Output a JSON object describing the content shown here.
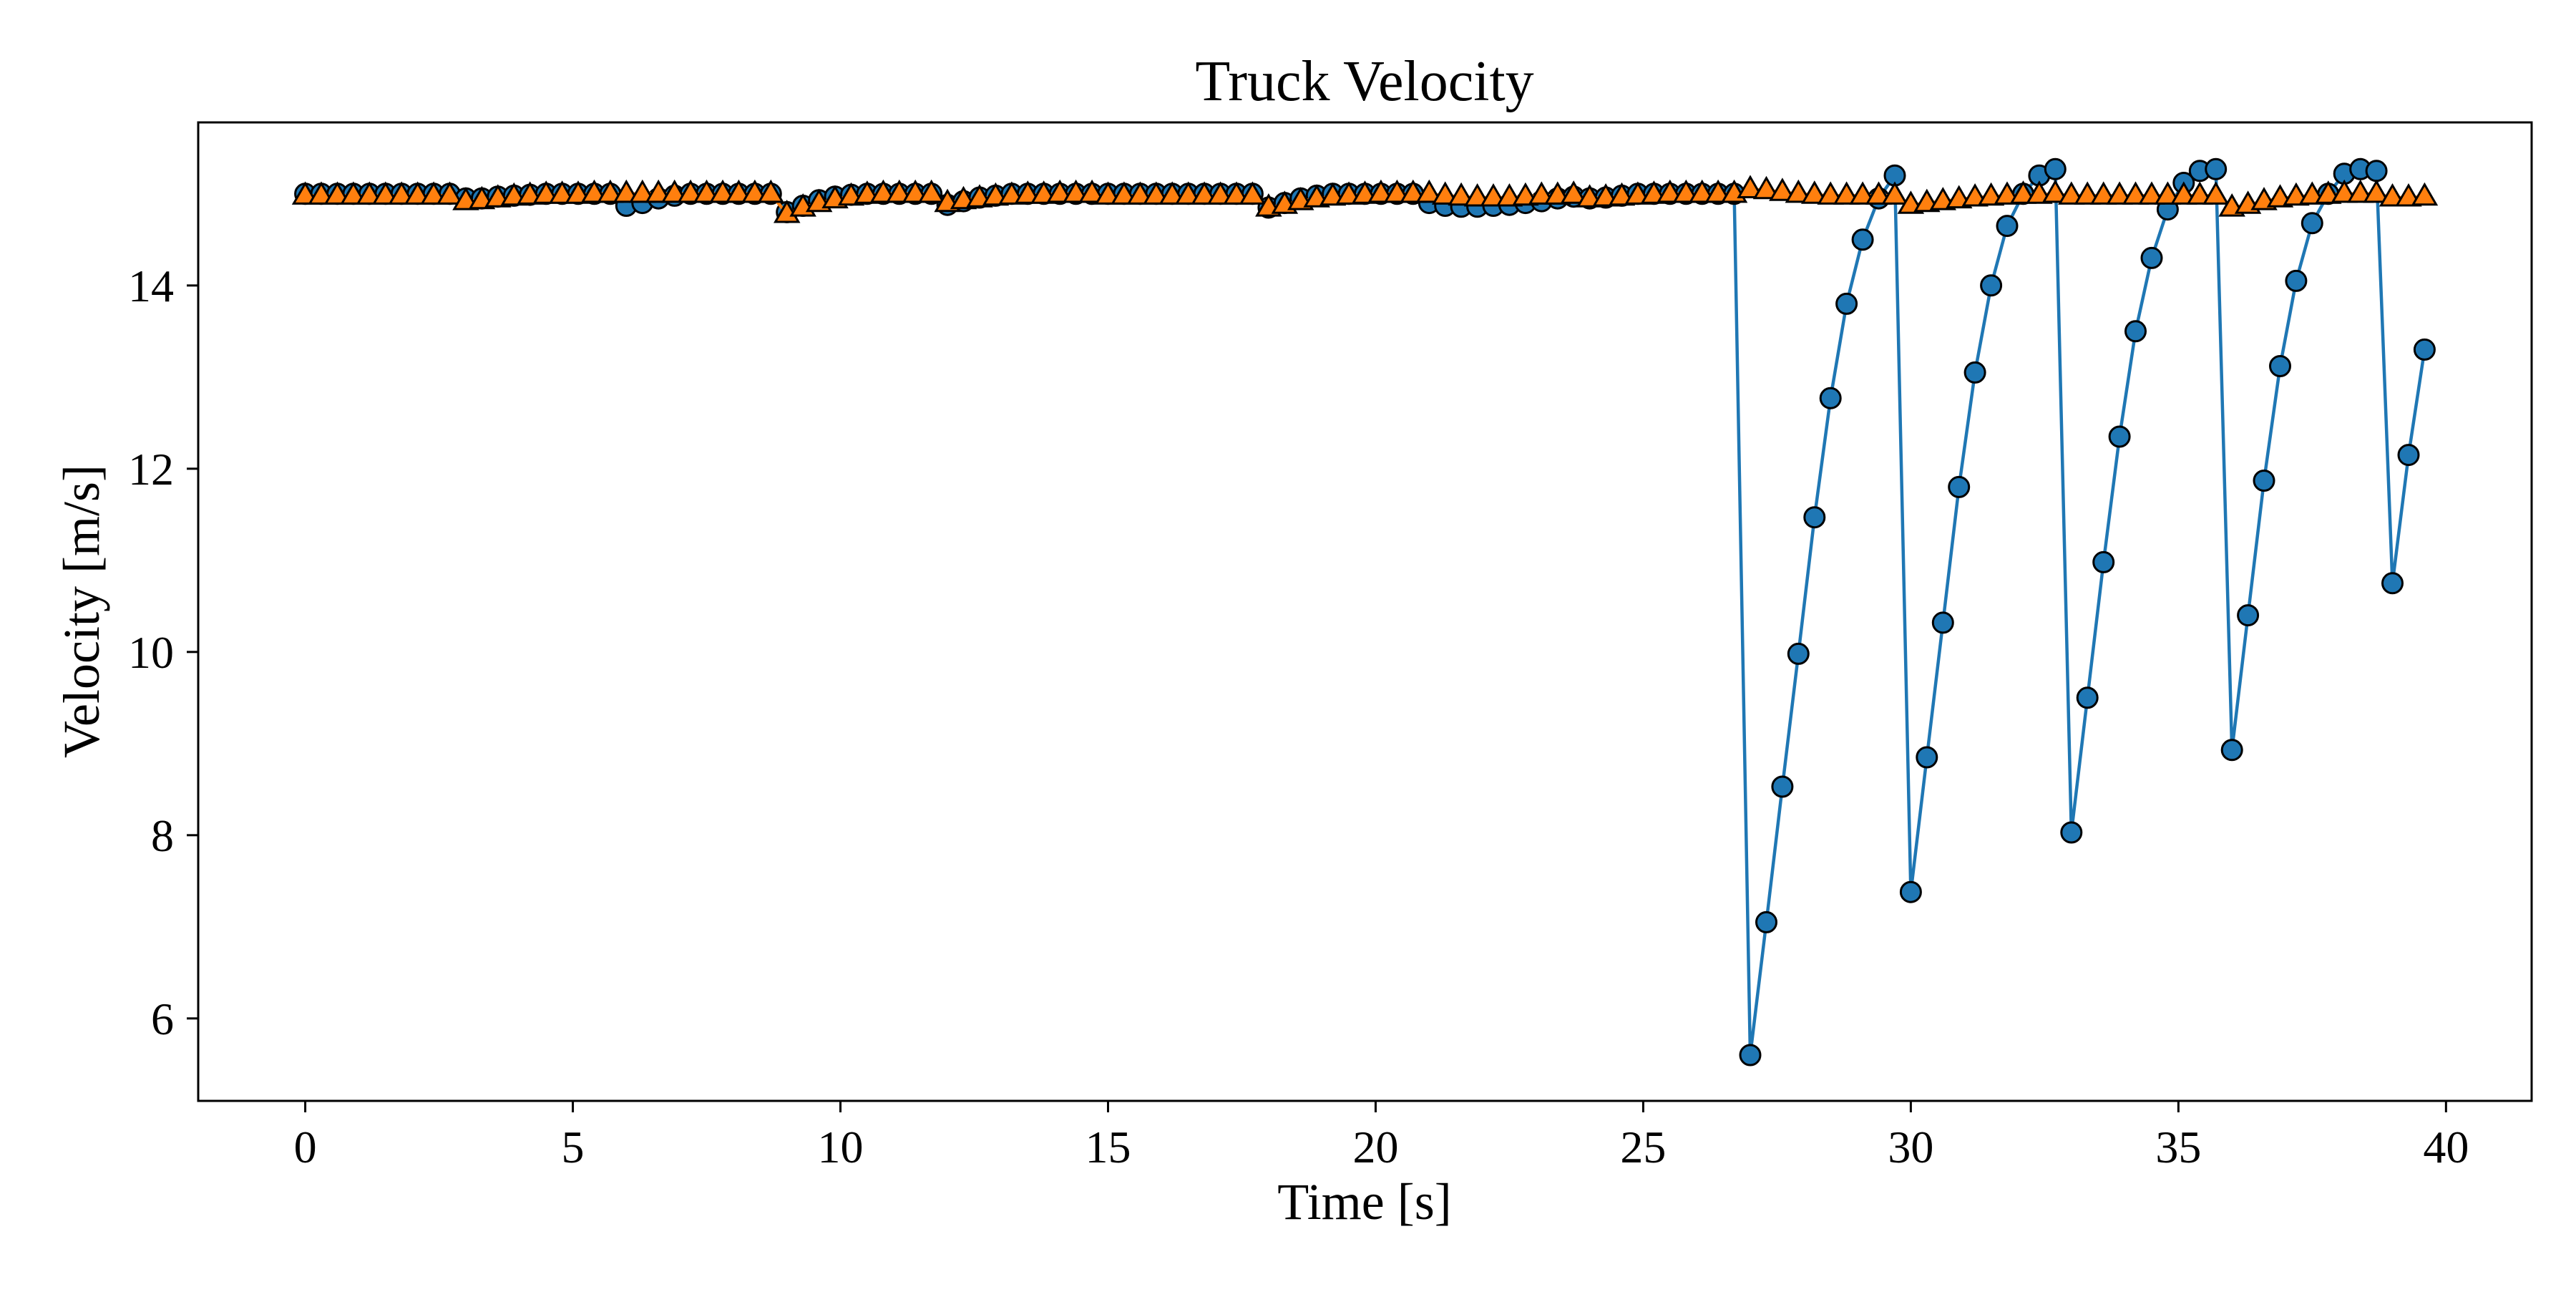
{
  "chart_data": {
    "type": "line",
    "title": "Truck Velocity",
    "xlabel": "Time [s]",
    "ylabel": "Velocity [m/s]",
    "xlim": [
      -2,
      41.6
    ],
    "ylim": [
      5.1,
      15.78
    ],
    "xticks": [
      0,
      5,
      10,
      15,
      20,
      25,
      30,
      35,
      40
    ],
    "yticks": [
      6,
      8,
      10,
      12,
      14
    ],
    "grid": false,
    "legend": "none",
    "series": [
      {
        "marker": "circle",
        "color": "#1f77b4",
        "line": true,
        "x": [
          0,
          0.3,
          0.6,
          0.9,
          1.2,
          1.5,
          1.8,
          2.1,
          2.4,
          2.7,
          3.0,
          3.3,
          3.6,
          3.9,
          4.2,
          4.5,
          4.8,
          5.1,
          5.4,
          5.7,
          6.0,
          6.3,
          6.6,
          6.9,
          7.2,
          7.5,
          7.8,
          8.1,
          8.4,
          8.7,
          9.0,
          9.3,
          9.6,
          9.9,
          10.2,
          10.5,
          10.8,
          11.1,
          11.4,
          11.7,
          12.0,
          12.3,
          12.6,
          12.9,
          13.2,
          13.5,
          13.8,
          14.1,
          14.4,
          14.7,
          15.0,
          15.3,
          15.6,
          15.9,
          16.2,
          16.5,
          16.8,
          17.1,
          17.4,
          17.7,
          18.0,
          18.3,
          18.6,
          18.9,
          19.2,
          19.5,
          19.8,
          20.1,
          20.4,
          20.7,
          21.0,
          21.3,
          21.6,
          21.9,
          22.2,
          22.5,
          22.8,
          23.1,
          23.4,
          23.7,
          24.0,
          24.3,
          24.6,
          24.9,
          25.2,
          25.5,
          25.8,
          26.1,
          26.4,
          26.7,
          27.0,
          27.3,
          27.6,
          27.9,
          28.2,
          28.5,
          28.8,
          29.1,
          29.4,
          29.7,
          30.0,
          30.3,
          30.6,
          30.9,
          31.2,
          31.5,
          31.8,
          32.1,
          32.4,
          32.7,
          33.0,
          33.3,
          33.6,
          33.9,
          34.2,
          34.5,
          34.8,
          35.1,
          35.4,
          35.7,
          36.0,
          36.3,
          36.6,
          36.9,
          37.2,
          37.5,
          37.8,
          38.1,
          38.4,
          38.7,
          39.0,
          39.3,
          39.6
        ],
        "y": [
          15.0,
          15.0,
          15.0,
          15.0,
          15.0,
          15.0,
          15.0,
          15.0,
          15.0,
          15.0,
          14.95,
          14.95,
          14.97,
          14.98,
          14.99,
          15.0,
          15.0,
          15.0,
          15.0,
          15.0,
          14.87,
          14.9,
          14.95,
          14.98,
          15.0,
          15.0,
          15.0,
          15.0,
          15.0,
          15.0,
          14.8,
          14.87,
          14.93,
          14.97,
          14.99,
          15.0,
          15.0,
          15.0,
          15.0,
          15.0,
          14.88,
          14.92,
          14.96,
          14.98,
          15.0,
          15.0,
          15.0,
          15.0,
          15.0,
          15.0,
          15.0,
          15.0,
          15.0,
          15.0,
          15.0,
          15.0,
          15.0,
          15.0,
          15.0,
          15.0,
          14.85,
          14.9,
          14.95,
          14.98,
          15.0,
          15.0,
          15.0,
          15.0,
          15.0,
          15.0,
          14.9,
          14.87,
          14.86,
          14.86,
          14.87,
          14.88,
          14.9,
          14.92,
          14.95,
          14.97,
          14.95,
          14.96,
          14.98,
          15.0,
          15.0,
          15.0,
          15.0,
          15.0,
          15.0,
          15.0,
          5.6,
          7.05,
          8.53,
          9.98,
          11.47,
          12.77,
          13.8,
          14.5,
          14.95,
          15.2,
          7.38,
          8.85,
          10.32,
          11.8,
          13.05,
          14.0,
          14.65,
          15.0,
          15.2,
          15.27,
          8.03,
          9.5,
          10.98,
          12.35,
          13.5,
          14.3,
          14.83,
          15.12,
          15.25,
          15.27,
          8.93,
          10.4,
          11.87,
          13.12,
          14.05,
          14.68,
          15.0,
          15.22,
          15.27,
          15.25,
          10.75,
          12.15,
          13.3
        ]
      },
      {
        "marker": "triangle",
        "color": "#ff7f0e",
        "line": true,
        "x": [
          0,
          0.3,
          0.6,
          0.9,
          1.2,
          1.5,
          1.8,
          2.1,
          2.4,
          2.7,
          3.0,
          3.3,
          3.6,
          3.9,
          4.2,
          4.5,
          4.8,
          5.1,
          5.4,
          5.7,
          6.0,
          6.3,
          6.6,
          6.9,
          7.2,
          7.5,
          7.8,
          8.1,
          8.4,
          8.7,
          9.0,
          9.3,
          9.6,
          9.9,
          10.2,
          10.5,
          10.8,
          11.1,
          11.4,
          11.7,
          12.0,
          12.3,
          12.6,
          12.9,
          13.2,
          13.5,
          13.8,
          14.1,
          14.4,
          14.7,
          15.0,
          15.3,
          15.6,
          15.9,
          16.2,
          16.5,
          16.8,
          17.1,
          17.4,
          17.7,
          18.0,
          18.3,
          18.6,
          18.9,
          19.2,
          19.5,
          19.8,
          20.1,
          20.4,
          20.7,
          21.0,
          21.3,
          21.6,
          21.9,
          22.2,
          22.5,
          22.8,
          23.1,
          23.4,
          23.7,
          24.0,
          24.3,
          24.6,
          24.9,
          25.2,
          25.5,
          25.8,
          26.1,
          26.4,
          26.7,
          27.0,
          27.3,
          27.6,
          27.9,
          28.2,
          28.5,
          28.8,
          29.1,
          29.4,
          29.7,
          30.0,
          30.3,
          30.6,
          30.9,
          31.2,
          31.5,
          31.8,
          32.1,
          32.4,
          32.7,
          33.0,
          33.3,
          33.6,
          33.9,
          34.2,
          34.5,
          34.8,
          35.1,
          35.4,
          35.7,
          36.0,
          36.3,
          36.6,
          36.9,
          37.2,
          37.5,
          37.8,
          38.1,
          38.4,
          38.7,
          39.0,
          39.3,
          39.6
        ],
        "y": [
          14.98,
          14.98,
          14.98,
          14.98,
          14.98,
          14.98,
          14.98,
          14.98,
          14.98,
          14.98,
          14.92,
          14.93,
          14.95,
          14.97,
          14.98,
          14.99,
          14.99,
          14.99,
          15.0,
          15.0,
          15.0,
          15.0,
          15.0,
          15.0,
          15.0,
          15.0,
          15.0,
          15.0,
          15.0,
          15.0,
          14.78,
          14.85,
          14.9,
          14.94,
          14.97,
          14.99,
          15.0,
          15.0,
          15.0,
          15.0,
          14.9,
          14.93,
          14.95,
          14.97,
          14.98,
          14.99,
          14.99,
          15.0,
          15.0,
          15.0,
          14.98,
          14.98,
          14.98,
          14.98,
          14.98,
          14.98,
          14.98,
          14.98,
          14.98,
          14.98,
          14.85,
          14.88,
          14.92,
          14.95,
          14.97,
          14.98,
          14.99,
          15.0,
          15.0,
          15.0,
          15.0,
          14.98,
          14.97,
          14.96,
          14.96,
          14.96,
          14.97,
          14.98,
          14.98,
          14.99,
          14.95,
          14.96,
          14.97,
          14.98,
          14.99,
          15.0,
          15.0,
          15.0,
          15.0,
          15.0,
          15.05,
          15.04,
          15.02,
          15.0,
          14.99,
          14.98,
          14.98,
          14.98,
          14.98,
          14.98,
          14.88,
          14.9,
          14.92,
          14.94,
          14.96,
          14.97,
          14.98,
          14.99,
          14.99,
          15.0,
          14.98,
          14.98,
          14.98,
          14.98,
          14.98,
          14.98,
          14.98,
          14.98,
          14.98,
          14.98,
          14.85,
          14.88,
          14.92,
          14.95,
          14.97,
          14.98,
          14.99,
          15.0,
          15.0,
          15.0,
          14.96,
          14.96,
          14.97
        ]
      }
    ]
  }
}
